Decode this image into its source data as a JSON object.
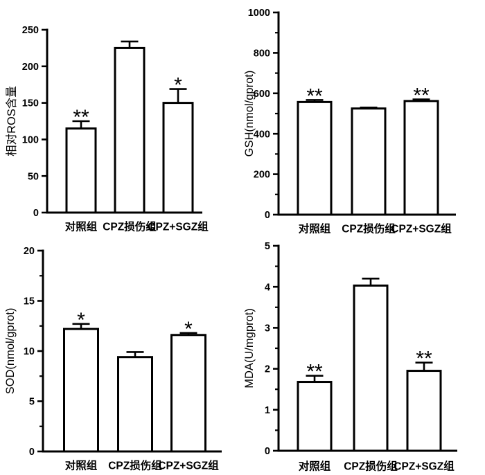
{
  "figure": {
    "background": "#ffffff",
    "bar_fill": "#ffffff",
    "bar_stroke": "#000000",
    "axis_color": "#000000",
    "text_color": "#000000"
  },
  "chart_data": [
    {
      "type": "bar",
      "panel": "top-left",
      "title": "",
      "ylabel": "相对ROS含量",
      "xlabel": "",
      "categories": [
        "对照组",
        "CPZ损伤组",
        "CPZ+SGZ组"
      ],
      "values": [
        115,
        225,
        150
      ],
      "errors": [
        10,
        9,
        19
      ],
      "significance": [
        "**",
        "",
        "*"
      ],
      "ylim": [
        0,
        250
      ],
      "yticks": [
        0,
        50,
        100,
        150,
        200,
        250
      ],
      "minor_tick_step": null,
      "grid": false,
      "legend": null
    },
    {
      "type": "bar",
      "panel": "top-right",
      "title": "",
      "ylabel": "GSH(nmol/gprot)",
      "xlabel": "",
      "categories": [
        "对照组",
        "CPZ损伤组",
        "CPZ+SGZ组"
      ],
      "values": [
        557,
        525,
        562
      ],
      "errors": [
        10,
        5,
        8
      ],
      "significance": [
        "**",
        "",
        "**"
      ],
      "ylim": [
        0,
        1000
      ],
      "yticks": [
        0,
        200,
        400,
        600,
        800,
        1000
      ],
      "minor_tick_step": 100,
      "grid": false,
      "legend": null
    },
    {
      "type": "bar",
      "panel": "bottom-left",
      "title": "",
      "ylabel": "SOD(nmol/gprot)",
      "xlabel": "",
      "categories": [
        "对照组",
        "CPZ损伤组",
        "CPZ+SGZ组"
      ],
      "values": [
        12.2,
        9.4,
        11.6
      ],
      "errors": [
        0.5,
        0.5,
        0.2
      ],
      "significance": [
        "*",
        "",
        "*"
      ],
      "ylim": [
        0,
        20
      ],
      "yticks": [
        0,
        5,
        10,
        15,
        20
      ],
      "minor_tick_step": 2.5,
      "grid": false,
      "legend": null
    },
    {
      "type": "bar",
      "panel": "bottom-right",
      "title": "",
      "ylabel": "MDA(U/mgprot)",
      "xlabel": "",
      "categories": [
        "对照组",
        "CPZ损伤组",
        "CPZ+SGZ组"
      ],
      "values": [
        1.68,
        4.03,
        1.95
      ],
      "errors": [
        0.15,
        0.17,
        0.2
      ],
      "significance": [
        "**",
        "",
        "**"
      ],
      "ylim": [
        0,
        5
      ],
      "yticks": [
        0,
        1,
        2,
        3,
        4,
        5
      ],
      "minor_tick_step": 0.5,
      "grid": false,
      "legend": null
    }
  ]
}
